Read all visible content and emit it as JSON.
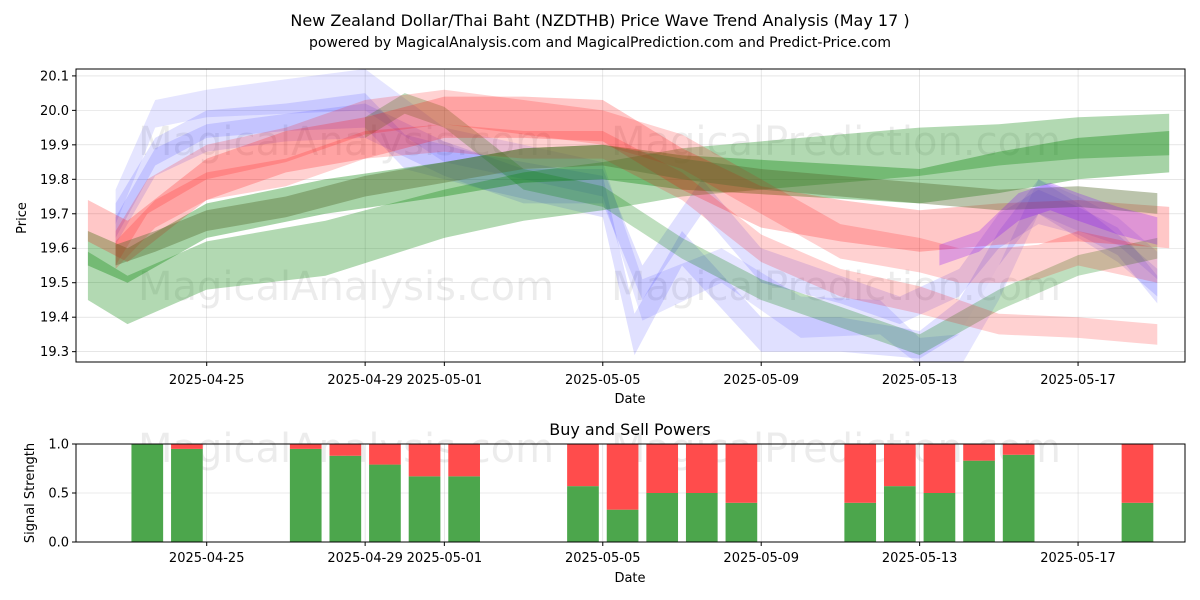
{
  "chart_data": [
    {
      "type": "area",
      "title": "New Zealand Dollar/Thai Baht (NZDTHB) Price Wave Trend Analysis (May 17 )",
      "subtitle": "powered by MagicalAnalysis.com and MagicalPrediction.com and Predict-Price.com",
      "xlabel": "Date",
      "ylabel": "Price",
      "ylim": [
        19.27,
        20.12
      ],
      "yticks": [
        "19.3",
        "19.4",
        "19.5",
        "19.6",
        "19.7",
        "19.8",
        "19.9",
        "20.0",
        "20.1"
      ],
      "x_day_range": [
        -3.3,
        24.7
      ],
      "xticks": [
        {
          "day": 0,
          "label": "2025-04-25"
        },
        {
          "day": 4,
          "label": "2025-04-29"
        },
        {
          "day": 6,
          "label": "2025-05-01"
        },
        {
          "day": 10,
          "label": "2025-05-05"
        },
        {
          "day": 14,
          "label": "2025-05-09"
        },
        {
          "day": 18,
          "label": "2025-05-13"
        },
        {
          "day": 22,
          "label": "2025-05-17"
        }
      ],
      "grid": true,
      "series": [
        {
          "name": "blue-wave-1",
          "color": "#0000ff",
          "opacity": 0.1,
          "x": [
            -2.3,
            -1.3,
            0,
            2,
            4,
            6,
            8,
            10,
            11,
            13,
            15,
            17,
            18,
            19,
            20,
            21,
            22,
            23,
            24
          ],
          "y": [
            19.72,
            19.99,
            20.02,
            20.04,
            20.06,
            19.9,
            19.85,
            19.8,
            19.45,
            19.55,
            19.4,
            19.4,
            19.3,
            19.3,
            19.5,
            19.75,
            19.7,
            19.65,
            19.55
          ],
          "width": [
            0.05,
            0.04,
            0.04,
            0.05,
            0.06,
            0.05,
            0.05,
            0.05,
            0.06,
            0.05,
            0.06,
            0.05,
            0.04,
            0.05,
            0.05,
            0.05,
            0.05,
            0.04,
            0.04
          ]
        },
        {
          "name": "blue-wave-2",
          "color": "#0000ff",
          "opacity": 0.12,
          "x": [
            -2.3,
            -1.3,
            0,
            2,
            4,
            5,
            7,
            10,
            10.8,
            12,
            14,
            16,
            18,
            19,
            20,
            21,
            22,
            23,
            24
          ],
          "y": [
            19.68,
            19.88,
            19.96,
            19.98,
            20.0,
            19.88,
            19.82,
            19.75,
            19.35,
            19.6,
            19.35,
            19.35,
            19.32,
            19.4,
            19.6,
            19.75,
            19.68,
            19.6,
            19.5
          ],
          "width": [
            0.05,
            0.04,
            0.04,
            0.04,
            0.05,
            0.05,
            0.05,
            0.06,
            0.06,
            0.05,
            0.05,
            0.05,
            0.04,
            0.05,
            0.05,
            0.05,
            0.05,
            0.04,
            0.04
          ]
        },
        {
          "name": "blue-wave-3",
          "color": "#0000ff",
          "opacity": 0.12,
          "x": [
            -2.3,
            -1.3,
            0,
            2,
            4,
            6,
            8,
            10,
            11,
            12.5,
            14,
            16,
            17.5,
            19,
            20,
            21,
            22,
            23,
            24
          ],
          "y": [
            19.65,
            19.85,
            19.92,
            19.95,
            19.97,
            19.86,
            19.78,
            19.78,
            19.5,
            19.75,
            19.55,
            19.48,
            19.42,
            19.5,
            19.65,
            19.72,
            19.68,
            19.62,
            19.48
          ],
          "width": [
            0.04,
            0.04,
            0.04,
            0.04,
            0.05,
            0.05,
            0.05,
            0.05,
            0.05,
            0.05,
            0.05,
            0.04,
            0.04,
            0.04,
            0.05,
            0.05,
            0.04,
            0.04,
            0.04
          ]
        },
        {
          "name": "green-wave-1",
          "color": "#008000",
          "opacity": 0.3,
          "x": [
            -3,
            -2,
            0,
            3,
            6,
            8,
            10,
            12,
            15,
            18,
            20,
            22,
            24.3
          ],
          "y": [
            19.52,
            19.45,
            19.55,
            19.6,
            19.7,
            19.75,
            19.78,
            19.82,
            19.85,
            19.88,
            19.9,
            19.92,
            19.93
          ],
          "width": [
            0.07,
            0.07,
            0.07,
            0.08,
            0.07,
            0.07,
            0.07,
            0.07,
            0.07,
            0.07,
            0.06,
            0.06,
            0.06
          ]
        },
        {
          "name": "green-wave-2",
          "color": "#008000",
          "opacity": 0.35,
          "x": [
            -3,
            -2,
            0,
            3,
            6,
            8,
            10,
            12,
            15,
            18,
            20,
            22,
            24.3
          ],
          "y": [
            19.6,
            19.55,
            19.68,
            19.75,
            19.8,
            19.84,
            19.85,
            19.82,
            19.8,
            19.78,
            19.82,
            19.86,
            19.88
          ],
          "width": [
            0.05,
            0.05,
            0.05,
            0.05,
            0.05,
            0.05,
            0.05,
            0.05,
            0.05,
            0.05,
            0.06,
            0.06,
            0.06
          ]
        },
        {
          "name": "green-wave-3",
          "color": "#008000",
          "opacity": 0.25,
          "x": [
            4,
            5,
            6,
            8,
            10,
            12,
            14,
            16,
            18,
            20,
            22,
            24
          ],
          "y": [
            19.95,
            20.02,
            19.98,
            19.8,
            19.75,
            19.6,
            19.48,
            19.4,
            19.32,
            19.45,
            19.55,
            19.6
          ],
          "width": [
            0.03,
            0.03,
            0.03,
            0.03,
            0.03,
            0.03,
            0.03,
            0.03,
            0.03,
            0.03,
            0.03,
            0.03
          ]
        },
        {
          "name": "red-wave-1",
          "color": "#ff0000",
          "opacity": 0.22,
          "x": [
            -3,
            -2,
            0,
            2,
            4,
            6,
            8,
            10,
            12,
            14,
            16,
            18,
            20,
            22,
            24.3
          ],
          "y": [
            19.68,
            19.62,
            19.8,
            19.88,
            19.92,
            19.98,
            19.98,
            19.97,
            19.83,
            19.72,
            19.68,
            19.65,
            19.67,
            19.68,
            19.66
          ],
          "width": [
            0.06,
            0.06,
            0.06,
            0.06,
            0.06,
            0.06,
            0.06,
            0.06,
            0.06,
            0.06,
            0.06,
            0.06,
            0.06,
            0.06,
            0.06
          ]
        },
        {
          "name": "red-wave-2",
          "color": "#ff0000",
          "opacity": 0.18,
          "x": [
            -2.3,
            -1.5,
            0,
            2,
            4,
            6,
            8,
            10,
            12,
            14,
            16,
            18,
            19,
            20,
            21,
            22,
            24
          ],
          "y": [
            19.6,
            19.75,
            19.85,
            19.9,
            19.98,
            20.01,
            19.98,
            19.95,
            19.88,
            19.75,
            19.62,
            19.58,
            19.55,
            19.55,
            19.56,
            19.6,
            19.55
          ],
          "width": [
            0.05,
            0.05,
            0.05,
            0.05,
            0.05,
            0.05,
            0.05,
            0.05,
            0.05,
            0.05,
            0.05,
            0.05,
            0.05,
            0.05,
            0.05,
            0.05,
            0.05
          ]
        },
        {
          "name": "red-wave-3",
          "color": "#ff0000",
          "opacity": 0.18,
          "x": [
            -2.3,
            -1.3,
            0,
            2,
            4,
            6,
            8,
            10,
            12,
            14,
            16,
            18,
            20,
            22,
            24
          ],
          "y": [
            19.58,
            19.7,
            19.78,
            19.82,
            19.9,
            19.92,
            19.9,
            19.9,
            19.78,
            19.6,
            19.5,
            19.45,
            19.38,
            19.37,
            19.35
          ],
          "width": [
            0.04,
            0.04,
            0.04,
            0.04,
            0.04,
            0.04,
            0.04,
            0.04,
            0.04,
            0.04,
            0.04,
            0.04,
            0.03,
            0.03,
            0.03
          ]
        },
        {
          "name": "olive-wave",
          "color": "#556b2f",
          "opacity": 0.4,
          "x": [
            -2.3,
            -1.3,
            0,
            2,
            4,
            6,
            8,
            10,
            12,
            14,
            16,
            18,
            20,
            22,
            24
          ],
          "y": [
            19.58,
            19.62,
            19.68,
            19.72,
            19.78,
            19.82,
            19.86,
            19.87,
            19.83,
            19.8,
            19.78,
            19.76,
            19.74,
            19.75,
            19.73
          ],
          "width": [
            0.03,
            0.03,
            0.03,
            0.03,
            0.03,
            0.03,
            0.03,
            0.03,
            0.03,
            0.03,
            0.03,
            0.03,
            0.03,
            0.03,
            0.03
          ]
        },
        {
          "name": "purple-wave",
          "color": "#8000ff",
          "opacity": 0.25,
          "x": [
            18.5,
            19.5,
            20.5,
            21.3,
            22,
            23,
            24
          ],
          "y": [
            19.58,
            19.62,
            19.72,
            19.75,
            19.72,
            19.68,
            19.65
          ],
          "width": [
            0.03,
            0.03,
            0.04,
            0.04,
            0.04,
            0.04,
            0.04
          ]
        }
      ],
      "watermarks": [
        "MagicalAnalysis.com",
        "MagicalPrediction.com",
        "MagicalAnalysis.com",
        "MagicalPrediction.com"
      ]
    },
    {
      "type": "bar",
      "title": "Buy and Sell Powers",
      "xlabel": "Date",
      "ylabel": "Signal Strength",
      "ylim": [
        0,
        1.0
      ],
      "yticks": [
        "0.0",
        "0.5",
        "1.0"
      ],
      "xticks": [
        {
          "day": 0,
          "label": "2025-04-25"
        },
        {
          "day": 4,
          "label": "2025-04-29"
        },
        {
          "day": 6,
          "label": "2025-05-01"
        },
        {
          "day": 10,
          "label": "2025-05-05"
        },
        {
          "day": 14,
          "label": "2025-05-09"
        },
        {
          "day": 18,
          "label": "2025-05-13"
        },
        {
          "day": 22,
          "label": "2025-05-17"
        }
      ],
      "series": [
        {
          "name": "Buy",
          "color": "#4ca64c"
        },
        {
          "name": "Sell",
          "color": "#ff4c4c"
        }
      ],
      "bars": [
        {
          "day": -1.5,
          "buy": 1.0
        },
        {
          "day": -0.5,
          "buy": 0.95
        },
        {
          "day": 2.5,
          "buy": 0.95
        },
        {
          "day": 3.5,
          "buy": 0.88
        },
        {
          "day": 4.5,
          "buy": 0.79
        },
        {
          "day": 5.5,
          "buy": 0.67
        },
        {
          "day": 6.5,
          "buy": 0.67
        },
        {
          "day": 9.5,
          "buy": 0.57
        },
        {
          "day": 10.5,
          "buy": 0.33
        },
        {
          "day": 11.5,
          "buy": 0.5
        },
        {
          "day": 12.5,
          "buy": 0.5
        },
        {
          "day": 13.5,
          "buy": 0.4
        },
        {
          "day": 16.5,
          "buy": 0.4
        },
        {
          "day": 17.5,
          "buy": 0.57
        },
        {
          "day": 18.5,
          "buy": 0.5
        },
        {
          "day": 19.5,
          "buy": 0.83
        },
        {
          "day": 20.5,
          "buy": 0.89
        },
        {
          "day": 23.5,
          "buy": 0.4
        }
      ],
      "watermarks": [
        "MagicalAnalysis.com",
        "MagicalPrediction.com"
      ]
    }
  ]
}
